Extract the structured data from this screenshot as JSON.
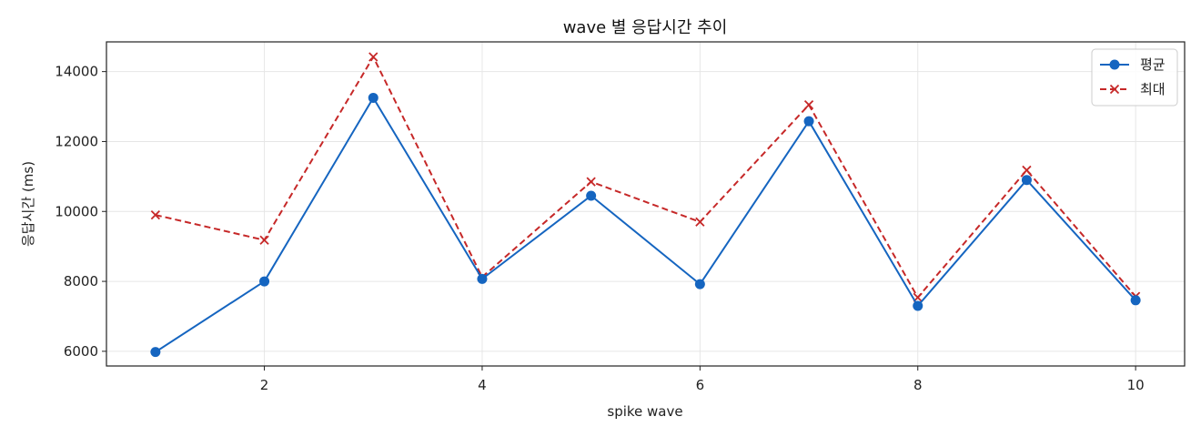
{
  "chart_data": {
    "type": "line",
    "title": "wave 별 응답시간 추이",
    "xlabel": "spike wave",
    "ylabel": "응답시간 (ms)",
    "x": [
      1,
      2,
      3,
      4,
      5,
      6,
      7,
      8,
      9,
      10
    ],
    "xlim": [
      0.55,
      10.45
    ],
    "ylim": [
      5580,
      14850
    ],
    "xticks": [
      2,
      4,
      6,
      8,
      10
    ],
    "yticks": [
      6000,
      8000,
      10000,
      12000,
      14000
    ],
    "grid": true,
    "legend_position": "top-right",
    "series": [
      {
        "name": "평균",
        "values": [
          5980,
          8000,
          13250,
          8070,
          10450,
          7920,
          12580,
          7300,
          10900,
          7460
        ],
        "color": "#1565c0",
        "line_style": "solid",
        "marker": "circle"
      },
      {
        "name": "최대",
        "values": [
          9900,
          9180,
          14420,
          8120,
          10850,
          9700,
          13050,
          7540,
          11180,
          7570
        ],
        "color": "#c62828",
        "line_style": "dashed",
        "marker": "x"
      }
    ]
  }
}
